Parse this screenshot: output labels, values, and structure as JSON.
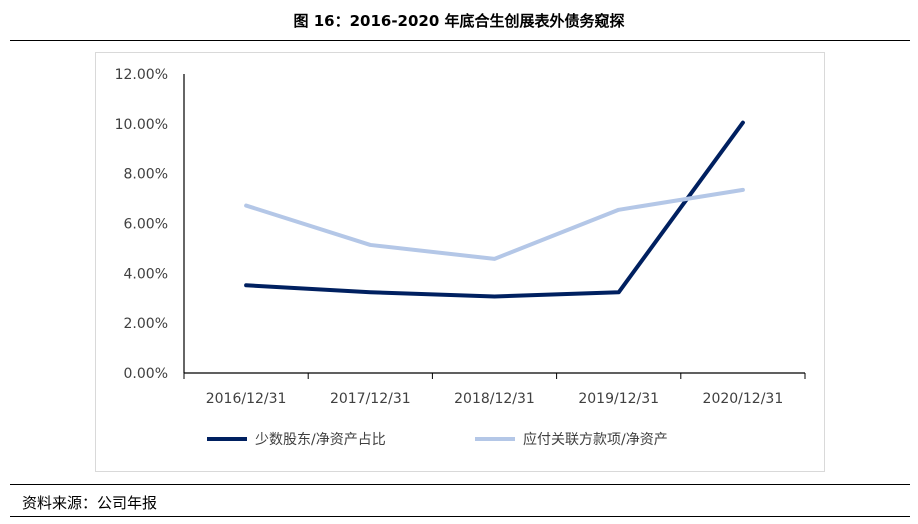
{
  "title": "图 16：2016-2020 年底合生创展表外债务窥探",
  "source": "资料来源：公司年报",
  "chart_data": {
    "type": "line",
    "title": "",
    "categories": [
      "2016/12/31",
      "2017/12/31",
      "2018/12/31",
      "2019/12/31",
      "2020/12/31"
    ],
    "ylim": [
      0,
      12
    ],
    "yticks": [
      "0.00%",
      "2.00%",
      "4.00%",
      "6.00%",
      "8.00%",
      "10.00%",
      "12.00%"
    ],
    "ytick_values": [
      0,
      2,
      4,
      6,
      8,
      10,
      12
    ],
    "grid": false,
    "legend": "bottom",
    "series": [
      {
        "name": "少数股东/净资产占比",
        "color": "#002060",
        "values": [
          3.52,
          3.24,
          3.07,
          3.24,
          10.05
        ]
      },
      {
        "name": "应付关联方款项/净资产",
        "color": "#b4c7e7",
        "values": [
          6.72,
          5.14,
          4.58,
          6.55,
          7.35
        ]
      }
    ]
  }
}
